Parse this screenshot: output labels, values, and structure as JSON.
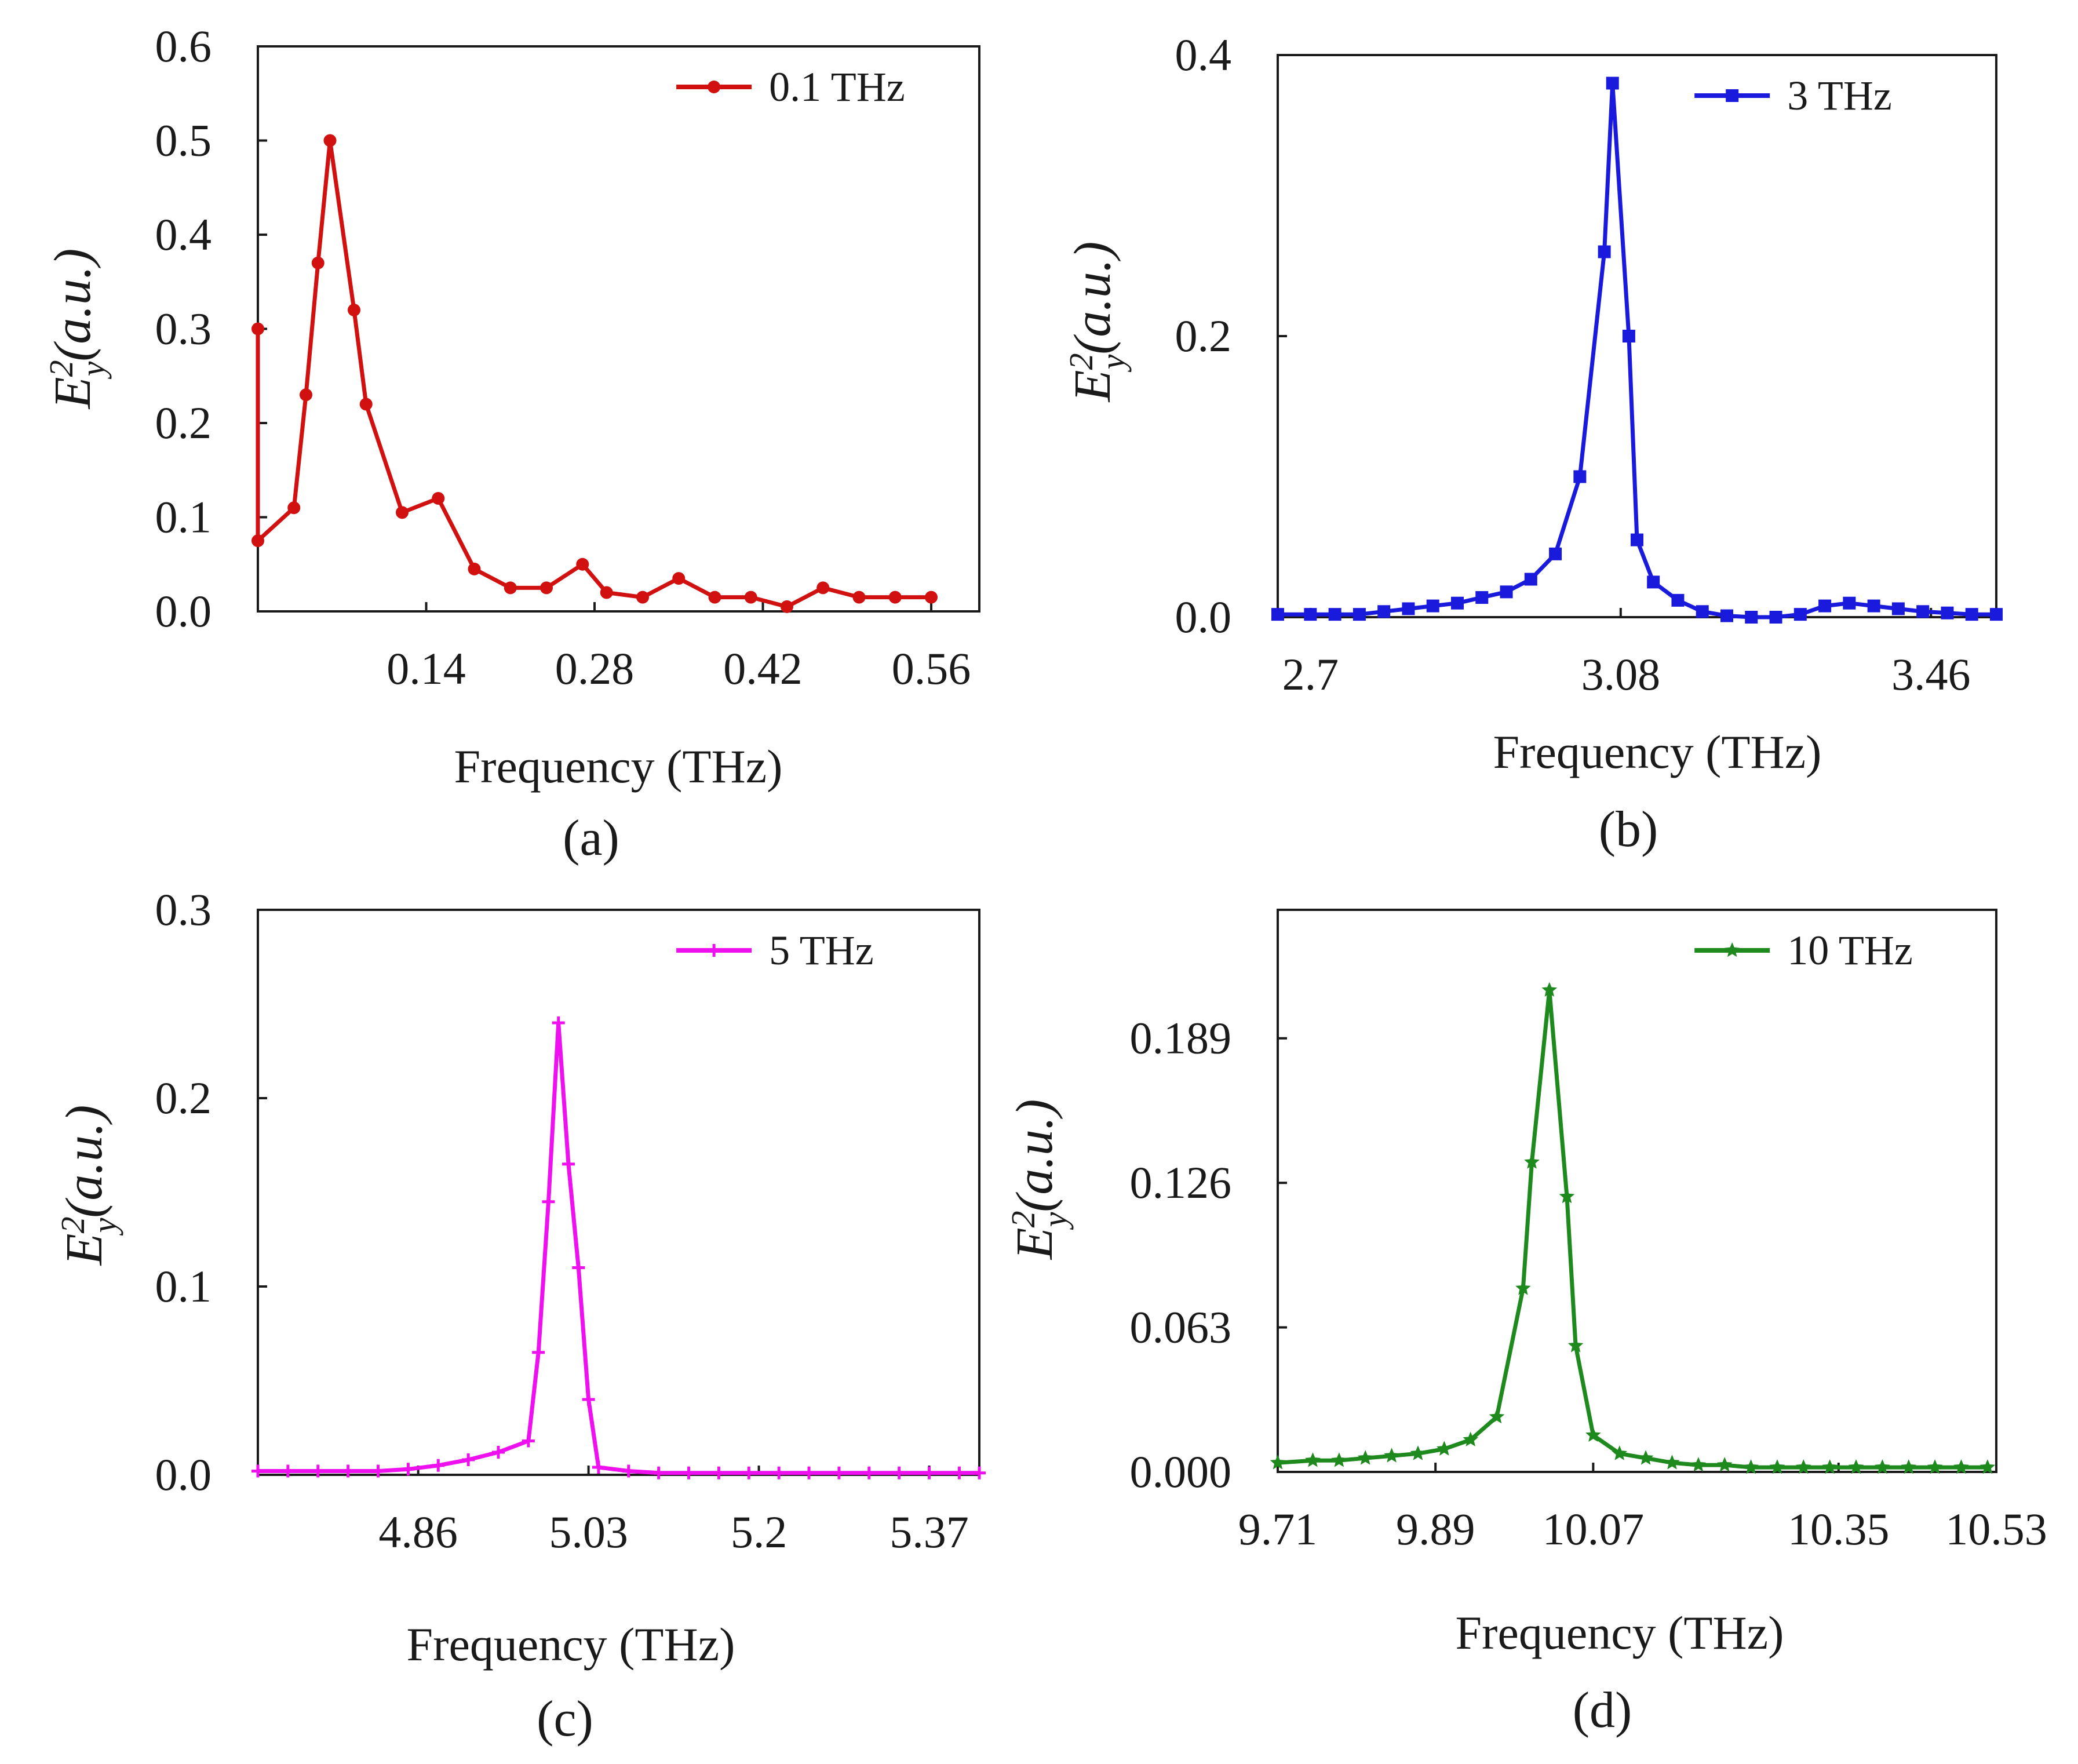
{
  "figure": {
    "xlabel": "Frequency (THz)",
    "ylabel_main": "E",
    "ylabel_sup": "2",
    "ylabel_sub": "y",
    "ylabel_unit": "(a.u.)"
  },
  "chart_data": [
    {
      "type": "line",
      "panel": "(a)",
      "title": "",
      "xlabel": "Frequency (THz)",
      "ylabel": "E_y^2 (a.u.)",
      "xlim": [
        0.0,
        0.6
      ],
      "ylim": [
        0.0,
        0.6
      ],
      "xticks": [
        0.14,
        0.28,
        0.42,
        0.56
      ],
      "xtick_labels": [
        "0.14",
        "0.28",
        "0.42",
        "0.56"
      ],
      "yticks": [
        0.0,
        0.1,
        0.2,
        0.3,
        0.4,
        0.5,
        0.6
      ],
      "ytick_labels": [
        "0.0",
        "0.1",
        "0.2",
        "0.3",
        "0.4",
        "0.5",
        "0.6"
      ],
      "legend_position": "top-right",
      "series": [
        {
          "name": "0.1 THz",
          "color": "#d11010",
          "marker": "circle",
          "x": [
            0.0,
            0.0,
            0.03,
            0.04,
            0.05,
            0.06,
            0.08,
            0.09,
            0.12,
            0.15,
            0.18,
            0.21,
            0.24,
            0.27,
            0.29,
            0.32,
            0.35,
            0.38,
            0.41,
            0.44,
            0.47,
            0.5,
            0.53,
            0.56
          ],
          "values": [
            0.3,
            0.075,
            0.11,
            0.23,
            0.37,
            0.5,
            0.32,
            0.22,
            0.105,
            0.12,
            0.045,
            0.025,
            0.025,
            0.05,
            0.02,
            0.015,
            0.035,
            0.015,
            0.015,
            0.005,
            0.025,
            0.015,
            0.015,
            0.015
          ]
        }
      ]
    },
    {
      "type": "line",
      "panel": "(b)",
      "title": "",
      "xlabel": "Frequency (THz)",
      "ylabel": "E_y^2 (a.u.)",
      "xlim": [
        2.66,
        3.54
      ],
      "ylim": [
        0.0,
        0.4
      ],
      "xticks": [
        2.7,
        3.08,
        3.46
      ],
      "xtick_labels": [
        "2.7",
        "3.08",
        "3.46"
      ],
      "yticks": [
        0.0,
        0.2,
        0.4
      ],
      "ytick_labels": [
        "0.0",
        "0.2",
        "0.4"
      ],
      "legend_position": "top-right",
      "series": [
        {
          "name": "3 THz",
          "color": "#1a1adc",
          "marker": "square",
          "x": [
            2.66,
            2.7,
            2.73,
            2.76,
            2.79,
            2.82,
            2.85,
            2.88,
            2.91,
            2.94,
            2.97,
            3.0,
            3.03,
            3.06,
            3.07,
            3.09,
            3.1,
            3.12,
            3.15,
            3.18,
            3.21,
            3.24,
            3.27,
            3.3,
            3.33,
            3.36,
            3.39,
            3.42,
            3.45,
            3.48,
            3.51,
            3.54
          ],
          "values": [
            0.002,
            0.002,
            0.002,
            0.002,
            0.004,
            0.006,
            0.008,
            0.01,
            0.014,
            0.018,
            0.027,
            0.045,
            0.1,
            0.26,
            0.38,
            0.2,
            0.055,
            0.025,
            0.012,
            0.004,
            0.001,
            0.0,
            0.0,
            0.002,
            0.008,
            0.01,
            0.008,
            0.006,
            0.004,
            0.003,
            0.002,
            0.002
          ]
        }
      ]
    },
    {
      "type": "line",
      "panel": "(c)",
      "title": "",
      "xlabel": "Frequency (THz)",
      "ylabel": "E_y^2 (a.u.)",
      "xlim": [
        4.7,
        5.42
      ],
      "ylim": [
        0.0,
        0.3
      ],
      "xticks": [
        4.86,
        5.03,
        5.2,
        5.37
      ],
      "xtick_labels": [
        "4.86",
        "5.03",
        "5.2",
        "5.37"
      ],
      "yticks": [
        0.0,
        0.1,
        0.2,
        0.3
      ],
      "ytick_labels": [
        "0.0",
        "0.1",
        "0.2",
        "0.3"
      ],
      "legend_position": "top-right",
      "series": [
        {
          "name": "5 THz",
          "color": "#ee10ee",
          "marker": "plus",
          "x": [
            4.7,
            4.73,
            4.76,
            4.79,
            4.82,
            4.85,
            4.88,
            4.91,
            4.94,
            4.97,
            4.98,
            4.99,
            5.0,
            5.01,
            5.02,
            5.03,
            5.04,
            5.07,
            5.1,
            5.13,
            5.16,
            5.19,
            5.22,
            5.25,
            5.28,
            5.31,
            5.34,
            5.37,
            5.4,
            5.42
          ],
          "values": [
            0.002,
            0.002,
            0.002,
            0.002,
            0.002,
            0.003,
            0.005,
            0.008,
            0.012,
            0.018,
            0.065,
            0.145,
            0.24,
            0.165,
            0.11,
            0.04,
            0.004,
            0.002,
            0.001,
            0.001,
            0.001,
            0.001,
            0.001,
            0.001,
            0.001,
            0.001,
            0.001,
            0.001,
            0.001,
            0.001
          ]
        }
      ]
    },
    {
      "type": "line",
      "panel": "(d)",
      "title": "",
      "xlabel": "Frequency (THz)",
      "ylabel": "E_y^2 (a.u.)",
      "xlim": [
        9.71,
        10.53
      ],
      "ylim": [
        0.0,
        0.245
      ],
      "xticks": [
        9.71,
        9.89,
        10.07,
        10.35,
        10.53
      ],
      "xtick_labels": [
        "9.71",
        "9.89",
        "10.07",
        "10.35",
        "10.53"
      ],
      "yticks": [
        0.0,
        0.063,
        0.126,
        0.189
      ],
      "ytick_labels": [
        "0.000",
        "0.063",
        "0.126",
        "0.189"
      ],
      "legend_position": "top-right",
      "series": [
        {
          "name": "10 THz",
          "color": "#1e8a1e",
          "marker": "star",
          "x": [
            9.71,
            9.75,
            9.78,
            9.81,
            9.84,
            9.87,
            9.9,
            9.93,
            9.96,
            9.99,
            10.0,
            10.02,
            10.04,
            10.05,
            10.07,
            10.1,
            10.13,
            10.16,
            10.19,
            10.22,
            10.25,
            10.28,
            10.31,
            10.34,
            10.37,
            10.4,
            10.43,
            10.46,
            10.49,
            10.52
          ],
          "values": [
            0.004,
            0.005,
            0.005,
            0.006,
            0.007,
            0.008,
            0.01,
            0.014,
            0.024,
            0.08,
            0.135,
            0.21,
            0.12,
            0.055,
            0.016,
            0.008,
            0.006,
            0.004,
            0.003,
            0.003,
            0.002,
            0.002,
            0.002,
            0.002,
            0.002,
            0.002,
            0.002,
            0.002,
            0.002,
            0.002
          ]
        }
      ]
    }
  ]
}
